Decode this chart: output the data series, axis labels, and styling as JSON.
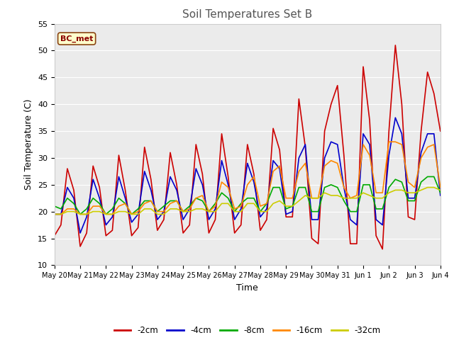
{
  "title": "Soil Temperatures Set B",
  "xlabel": "Time",
  "ylabel": "Soil Temperature (C)",
  "ylim": [
    10,
    55
  ],
  "yticks": [
    10,
    15,
    20,
    25,
    30,
    35,
    40,
    45,
    50,
    55
  ],
  "annotation": "BC_met",
  "fig_bg_color": "#ffffff",
  "plot_bg_color": "#ebebeb",
  "line_colors": {
    "-2cm": "#cc0000",
    "-4cm": "#0000cc",
    "-8cm": "#00aa00",
    "-16cm": "#ff8800",
    "-32cm": "#cccc00"
  },
  "x_labels": [
    "May 20",
    "May 21",
    "May 22",
    "May 23",
    "May 24",
    "May 25",
    "May 26",
    "May 27",
    "May 28",
    "May 29",
    "May 30",
    "May 31",
    "Jun 1",
    "Jun 2",
    "Jun 3",
    "Jun 4"
  ],
  "depth_2cm": [
    15.5,
    17.5,
    28.0,
    24.0,
    13.5,
    16.0,
    28.5,
    24.5,
    15.5,
    16.5,
    30.5,
    24.0,
    15.5,
    17.0,
    32.0,
    26.0,
    16.5,
    18.5,
    31.0,
    25.0,
    16.0,
    17.5,
    32.5,
    27.0,
    16.0,
    18.5,
    34.5,
    26.5,
    16.0,
    17.5,
    32.5,
    27.0,
    16.5,
    18.5,
    35.5,
    31.5,
    19.0,
    19.0,
    41.0,
    32.0,
    15.0,
    14.0,
    35.0,
    40.0,
    43.5,
    30.5,
    14.0,
    14.0,
    47.0,
    37.0,
    15.5,
    13.0,
    35.0,
    51.0,
    40.0,
    19.0,
    18.5,
    35.0,
    46.0,
    42.0,
    35.0
  ],
  "depth_4cm": [
    19.5,
    19.5,
    24.5,
    22.5,
    16.0,
    19.0,
    26.0,
    22.5,
    17.5,
    19.0,
    26.5,
    22.5,
    18.0,
    19.5,
    27.5,
    24.0,
    18.5,
    20.0,
    26.5,
    24.0,
    18.5,
    20.5,
    28.0,
    25.0,
    18.5,
    20.5,
    29.5,
    25.0,
    18.5,
    20.5,
    29.0,
    25.5,
    19.0,
    20.5,
    29.5,
    28.0,
    19.5,
    20.0,
    30.0,
    32.5,
    18.5,
    18.5,
    30.0,
    33.0,
    32.5,
    24.5,
    18.5,
    17.5,
    34.5,
    32.5,
    18.5,
    17.5,
    30.5,
    37.5,
    34.5,
    22.5,
    22.5,
    31.0,
    34.5,
    34.5,
    23.0
  ],
  "depth_8cm": [
    21.0,
    20.5,
    22.5,
    21.5,
    19.5,
    20.5,
    22.5,
    21.5,
    19.5,
    20.5,
    22.5,
    21.5,
    19.5,
    20.5,
    22.0,
    22.0,
    20.0,
    21.0,
    22.0,
    22.0,
    20.0,
    21.0,
    22.5,
    22.0,
    20.0,
    21.5,
    23.5,
    22.5,
    20.0,
    21.5,
    22.5,
    22.5,
    20.0,
    21.5,
    24.5,
    24.5,
    20.5,
    21.0,
    24.5,
    24.5,
    20.0,
    20.0,
    24.5,
    25.0,
    24.5,
    22.0,
    20.0,
    20.0,
    25.0,
    25.0,
    20.5,
    20.5,
    24.5,
    26.0,
    25.5,
    22.0,
    22.0,
    25.5,
    26.5,
    26.5,
    23.5
  ],
  "depth_16cm": [
    19.5,
    19.5,
    20.5,
    20.5,
    19.5,
    19.5,
    21.0,
    21.0,
    19.5,
    19.5,
    21.0,
    21.5,
    19.5,
    20.0,
    21.5,
    22.0,
    20.0,
    20.0,
    21.5,
    22.0,
    20.0,
    20.5,
    22.5,
    23.0,
    20.0,
    21.0,
    25.5,
    24.5,
    20.5,
    21.0,
    25.0,
    26.5,
    21.0,
    21.5,
    27.5,
    28.5,
    22.5,
    22.5,
    27.5,
    29.0,
    22.5,
    22.5,
    28.5,
    29.5,
    29.0,
    24.5,
    22.5,
    23.0,
    32.5,
    30.5,
    23.5,
    23.5,
    33.0,
    33.0,
    32.5,
    25.5,
    24.5,
    30.0,
    32.0,
    32.5,
    24.5
  ],
  "depth_32cm": [
    19.5,
    19.5,
    20.0,
    20.0,
    19.5,
    19.5,
    20.0,
    20.0,
    19.5,
    19.5,
    20.0,
    20.0,
    19.5,
    19.5,
    20.5,
    20.5,
    19.5,
    19.5,
    20.5,
    20.5,
    20.0,
    20.0,
    20.5,
    20.5,
    20.0,
    20.0,
    21.5,
    21.5,
    20.0,
    20.0,
    21.5,
    21.5,
    20.0,
    20.0,
    21.5,
    22.0,
    21.0,
    21.0,
    22.0,
    23.0,
    22.5,
    22.5,
    23.5,
    23.0,
    23.0,
    22.5,
    22.5,
    22.5,
    23.5,
    23.0,
    22.5,
    22.5,
    23.5,
    24.0,
    24.0,
    23.5,
    23.5,
    24.0,
    24.5,
    24.5,
    24.0
  ]
}
